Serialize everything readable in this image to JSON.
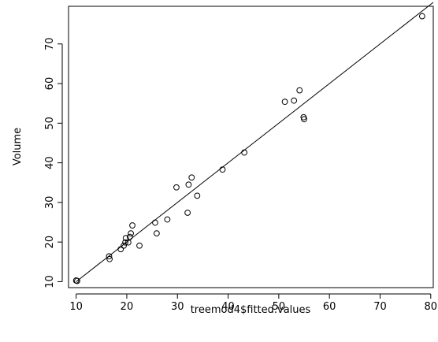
{
  "chart_data": {
    "type": "scatter",
    "title": "",
    "xlabel": "treemod4$fitted.values",
    "ylabel": "Volume",
    "xlim": [
      8.5,
      80.5
    ],
    "ylim": [
      8.5,
      79.5
    ],
    "xticks": [
      10,
      20,
      30,
      40,
      50,
      60,
      70,
      80
    ],
    "yticks": [
      10,
      20,
      30,
      40,
      50,
      60,
      70
    ],
    "grid": false,
    "point_style": "open-circle",
    "reference_line": {
      "type": "identity",
      "slope": 1,
      "intercept": 0
    },
    "points": [
      {
        "x": 10.0,
        "y": 10.3
      },
      {
        "x": 10.2,
        "y": 10.2
      },
      {
        "x": 16.5,
        "y": 16.4
      },
      {
        "x": 16.6,
        "y": 15.7
      },
      {
        "x": 18.8,
        "y": 18.2
      },
      {
        "x": 19.4,
        "y": 19.1
      },
      {
        "x": 19.7,
        "y": 19.9
      },
      {
        "x": 19.8,
        "y": 21.0
      },
      {
        "x": 20.3,
        "y": 19.9
      },
      {
        "x": 20.6,
        "y": 21.3
      },
      {
        "x": 20.8,
        "y": 22.2
      },
      {
        "x": 21.1,
        "y": 24.2
      },
      {
        "x": 22.5,
        "y": 19.1
      },
      {
        "x": 25.6,
        "y": 24.9
      },
      {
        "x": 25.9,
        "y": 22.2
      },
      {
        "x": 28.0,
        "y": 25.7
      },
      {
        "x": 29.8,
        "y": 33.8
      },
      {
        "x": 32.0,
        "y": 27.4
      },
      {
        "x": 32.2,
        "y": 34.5
      },
      {
        "x": 32.8,
        "y": 36.3
      },
      {
        "x": 33.9,
        "y": 31.7
      },
      {
        "x": 38.9,
        "y": 38.3
      },
      {
        "x": 43.2,
        "y": 42.6
      },
      {
        "x": 51.2,
        "y": 55.4
      },
      {
        "x": 53.0,
        "y": 55.7
      },
      {
        "x": 54.1,
        "y": 58.3
      },
      {
        "x": 54.9,
        "y": 51.5
      },
      {
        "x": 55.0,
        "y": 51.0
      },
      {
        "x": 78.3,
        "y": 77.0
      }
    ]
  }
}
